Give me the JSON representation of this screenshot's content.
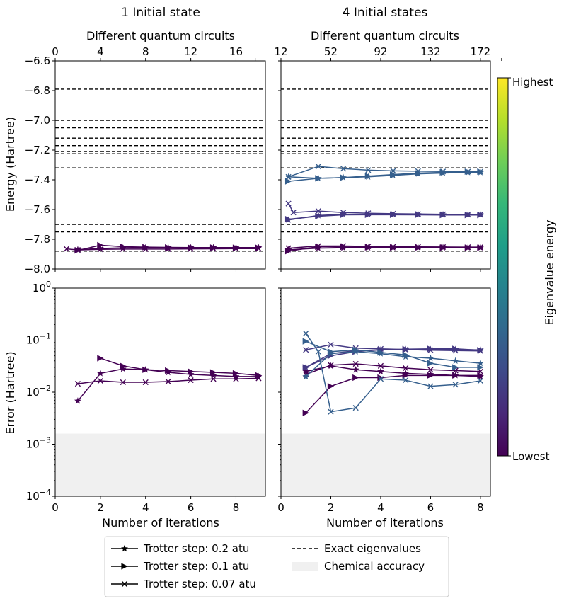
{
  "chart_data": [
    {
      "id": "energy_1",
      "type": "line",
      "title": "1 Initial state",
      "top_xlabel": "Different quantum circuits",
      "top_ticks": [
        0,
        4,
        8,
        12,
        16
      ],
      "ylabel": "Energy (Hartree)",
      "ylim": [
        -8.0,
        -6.6
      ],
      "yticks": [
        "−6.6",
        "−6.8",
        "−7.0",
        "−7.2",
        "−7.4",
        "−7.6",
        "−7.8",
        "−8.0"
      ],
      "xlim": [
        0,
        9.3
      ],
      "series": [
        {
          "name": "0.2 atu",
          "marker": "star",
          "color": "#440154",
          "x": [
            1,
            2,
            3,
            4,
            5,
            6,
            7,
            8,
            9
          ],
          "y": [
            -7.87,
            -7.862,
            -7.858,
            -7.857,
            -7.856,
            -7.856,
            -7.856,
            -7.856,
            -7.856
          ]
        },
        {
          "name": "0.1 atu",
          "marker": "tri",
          "color": "#440154",
          "x": [
            1,
            2,
            3,
            4,
            5,
            6,
            7,
            8,
            9
          ],
          "y": [
            -7.875,
            -7.84,
            -7.85,
            -7.853,
            -7.855,
            -7.856,
            -7.856,
            -7.857,
            -7.857
          ]
        },
        {
          "name": "0.07 atu",
          "marker": "x",
          "color": "#440154",
          "x": [
            0.5,
            1,
            2,
            3,
            4,
            5,
            6,
            7,
            8,
            9
          ],
          "y": [
            -7.865,
            -7.872,
            -7.868,
            -7.866,
            -7.866,
            -7.866,
            -7.865,
            -7.864,
            -7.863,
            -7.863
          ]
        }
      ]
    },
    {
      "id": "energy_4",
      "type": "line",
      "title": "4 Initial states",
      "top_xlabel": "Different quantum circuits",
      "top_ticks": [
        12,
        52,
        92,
        132,
        172
      ],
      "ylim": [
        -8.0,
        -6.6
      ],
      "xlim": [
        0,
        8.4
      ],
      "series": [
        {
          "name": "s1 0.2",
          "marker": "star",
          "color": "#440154",
          "x": [
            0.3,
            1.5,
            2.5,
            3.5,
            4.5,
            5.5,
            6.5,
            7.5,
            8
          ],
          "y": [
            -7.87,
            -7.86,
            -7.858,
            -7.857,
            -7.856,
            -7.856,
            -7.856,
            -7.856,
            -7.856
          ]
        },
        {
          "name": "s1 0.1",
          "marker": "tri",
          "color": "#440154",
          "x": [
            0.3,
            1.5,
            2.5,
            3.5,
            4.5,
            5.5,
            6.5,
            7.5,
            8
          ],
          "y": [
            -7.88,
            -7.85,
            -7.852,
            -7.854,
            -7.855,
            -7.856,
            -7.857,
            -7.857,
            -7.857
          ]
        },
        {
          "name": "s1 0.07",
          "marker": "x",
          "color": "#440154",
          "x": [
            0.3,
            1.5,
            2.5,
            3.5,
            4.5,
            5.5,
            6.5,
            7.5,
            8
          ],
          "y": [
            -7.86,
            -7.845,
            -7.845,
            -7.848,
            -7.85,
            -7.851,
            -7.852,
            -7.853,
            -7.853
          ]
        },
        {
          "name": "s2 0.2",
          "marker": "star",
          "color": "#443983",
          "x": [
            0.3,
            1.5,
            2.5,
            3.5,
            4.5,
            5.5,
            6.5,
            7.5,
            8
          ],
          "y": [
            -7.67,
            -7.64,
            -7.632,
            -7.632,
            -7.632,
            -7.633,
            -7.634,
            -7.634,
            -7.634
          ]
        },
        {
          "name": "s2 0.1",
          "marker": "tri",
          "color": "#443983",
          "x": [
            0.3,
            1.5,
            2.5,
            3.5,
            4.5,
            5.5,
            6.5,
            7.5,
            8
          ],
          "y": [
            -7.665,
            -7.645,
            -7.636,
            -7.635,
            -7.635,
            -7.636,
            -7.637,
            -7.637,
            -7.637
          ]
        },
        {
          "name": "s2 0.07",
          "marker": "x",
          "color": "#443983",
          "x": [
            0.3,
            0.5,
            1.5,
            2.5,
            3.5,
            4.5,
            5.5,
            6.5,
            7.5,
            8
          ],
          "y": [
            -7.56,
            -7.62,
            -7.61,
            -7.62,
            -7.625,
            -7.628,
            -7.63,
            -7.632,
            -7.633,
            -7.633
          ]
        },
        {
          "name": "s3 0.2",
          "marker": "star",
          "color": "#355f8d",
          "x": [
            0.3,
            1.5,
            2.5,
            3.5,
            4.5,
            5.5,
            6.5,
            7.5,
            8
          ],
          "y": [
            -7.38,
            -7.39,
            -7.385,
            -7.38,
            -7.37,
            -7.36,
            -7.355,
            -7.35,
            -7.35
          ]
        },
        {
          "name": "s3 0.1",
          "marker": "tri",
          "color": "#355f8d",
          "x": [
            0.3,
            1.5,
            2.5,
            3.5,
            4.5,
            5.5,
            6.5,
            7.5,
            8
          ],
          "y": [
            -7.41,
            -7.39,
            -7.385,
            -7.375,
            -7.365,
            -7.355,
            -7.35,
            -7.345,
            -7.345
          ]
        },
        {
          "name": "s3 0.07",
          "marker": "x",
          "color": "#355f8d",
          "x": [
            0.3,
            1.5,
            2.5,
            3.5,
            4.5,
            5.5,
            6.5,
            7.5,
            8
          ],
          "y": [
            -7.38,
            -7.31,
            -7.325,
            -7.335,
            -7.34,
            -7.342,
            -7.344,
            -7.345,
            -7.345
          ]
        }
      ]
    },
    {
      "id": "error_1",
      "type": "line",
      "ylabel": "Error (Hartree)",
      "yscale": "log",
      "ylim_exp": [
        -4,
        0
      ],
      "yticks_exp": [
        -4,
        -3,
        -2,
        -1,
        0
      ],
      "xlabel": "Number of iterations",
      "xticks": [
        0,
        2,
        4,
        6,
        8
      ],
      "xlim": [
        0,
        9.3
      ],
      "chemical_accuracy": 0.0016,
      "series": [
        {
          "name": "0.2 atu",
          "marker": "star",
          "color": "#440154",
          "x": [
            1,
            2,
            3,
            4,
            5,
            6,
            7,
            8,
            9
          ],
          "y": [
            0.0068,
            0.023,
            0.028,
            0.027,
            0.024,
            0.022,
            0.021,
            0.02,
            0.02
          ]
        },
        {
          "name": "0.1 atu",
          "marker": "tri",
          "color": "#440154",
          "x": [
            2,
            3,
            4,
            5,
            6,
            7,
            8,
            9
          ],
          "y": [
            0.045,
            0.032,
            0.027,
            0.026,
            0.025,
            0.024,
            0.023,
            0.021
          ]
        },
        {
          "name": "0.07 atu",
          "marker": "x",
          "color": "#440154",
          "x": [
            1,
            2,
            3,
            4,
            5,
            6,
            7,
            8,
            9
          ],
          "y": [
            0.0145,
            0.0165,
            0.0155,
            0.0155,
            0.016,
            0.017,
            0.018,
            0.018,
            0.0185
          ]
        }
      ]
    },
    {
      "id": "error_4",
      "type": "line",
      "yscale": "log",
      "ylim_exp": [
        -4,
        0
      ],
      "xlabel": "Number of iterations",
      "xticks": [
        0,
        2,
        4,
        6,
        8
      ],
      "xlim": [
        0,
        8.4
      ],
      "chemical_accuracy": 0.0016,
      "series": [
        {
          "name": "s1 0.1",
          "marker": "tri",
          "color": "#440154",
          "x": [
            1,
            2,
            3,
            4,
            5,
            6,
            7,
            8
          ],
          "y": [
            0.004,
            0.013,
            0.019,
            0.019,
            0.021,
            0.021,
            0.021,
            0.021
          ]
        },
        {
          "name": "s1 0.07",
          "marker": "x",
          "color": "#440154",
          "x": [
            1,
            2,
            3,
            4,
            5,
            6,
            7,
            8
          ],
          "y": [
            0.022,
            0.033,
            0.035,
            0.032,
            0.029,
            0.027,
            0.026,
            0.025
          ]
        },
        {
          "name": "s1 0.2",
          "marker": "star",
          "color": "#440154",
          "x": [
            1,
            2,
            3,
            4,
            5,
            6,
            7,
            8
          ],
          "y": [
            0.025,
            0.032,
            0.027,
            0.025,
            0.023,
            0.022,
            0.021,
            0.02
          ]
        },
        {
          "name": "s2 0.2",
          "marker": "star",
          "color": "#443983",
          "x": [
            1,
            2,
            3,
            4,
            5,
            6,
            7,
            8
          ],
          "y": [
            0.03,
            0.055,
            0.063,
            0.065,
            0.066,
            0.066,
            0.066,
            0.065
          ]
        },
        {
          "name": "s2 0.1",
          "marker": "tri",
          "color": "#443983",
          "x": [
            1,
            2,
            3,
            4,
            5,
            6,
            7,
            8
          ],
          "y": [
            0.03,
            0.05,
            0.06,
            0.065,
            0.067,
            0.068,
            0.068,
            0.064
          ]
        },
        {
          "name": "s2 0.07",
          "marker": "x",
          "color": "#443983",
          "x": [
            1,
            2,
            3,
            4,
            5,
            6,
            7,
            8
          ],
          "y": [
            0.065,
            0.082,
            0.07,
            0.068,
            0.066,
            0.064,
            0.063,
            0.062
          ]
        },
        {
          "name": "s3 0.2",
          "marker": "star",
          "color": "#355f8d",
          "x": [
            1,
            2,
            3,
            4,
            5,
            6,
            7,
            8
          ],
          "y": [
            0.02,
            0.055,
            0.06,
            0.055,
            0.048,
            0.045,
            0.04,
            0.036
          ]
        },
        {
          "name": "s3 0.1",
          "marker": "tri",
          "color": "#355f8d",
          "x": [
            1,
            2,
            3,
            4,
            5,
            6,
            7,
            8
          ],
          "y": [
            0.095,
            0.06,
            0.065,
            0.058,
            0.052,
            0.036,
            0.03,
            0.03
          ]
        },
        {
          "name": "s3 0.07",
          "marker": "x",
          "color": "#355f8d",
          "x": [
            1,
            1.5,
            2,
            3,
            4,
            5,
            6,
            7,
            8
          ],
          "y": [
            0.135,
            0.06,
            0.0042,
            0.005,
            0.018,
            0.017,
            0.013,
            0.014,
            0.0165
          ]
        }
      ]
    }
  ],
  "exact_eigenvalues": [
    -6.79,
    -7.0,
    -7.05,
    -7.12,
    -7.17,
    -7.21,
    -7.225,
    -7.32,
    -7.7,
    -7.75,
    -7.88
  ],
  "colorbar": {
    "label": "Eigenvalue energy",
    "top_label": "Highest",
    "bottom_label": "Lowest",
    "colors": [
      "#440154",
      "#482878",
      "#3e4989",
      "#31688e",
      "#26828e",
      "#1f9e89",
      "#35b779",
      "#6ece58",
      "#b5de2b",
      "#fde725"
    ]
  },
  "legend": {
    "items": [
      {
        "marker": "star",
        "label": "Trotter step: 0.2 atu"
      },
      {
        "marker": "tri",
        "label": "Trotter step: 0.1 atu"
      },
      {
        "marker": "x",
        "label": "Trotter step: 0.07 atu"
      },
      {
        "marker": "dashed",
        "label": "Exact eigenvalues"
      },
      {
        "marker": "patch",
        "label": "Chemical accuracy"
      }
    ]
  },
  "shade_color": "#f0f0f0"
}
